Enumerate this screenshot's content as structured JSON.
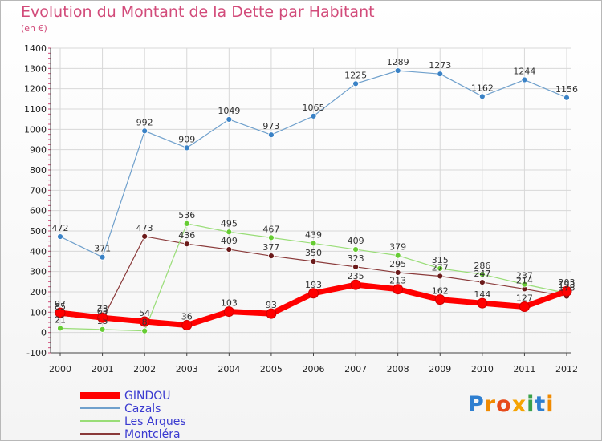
{
  "header": {
    "title": "Evolution du Montant de la Dette par Habitant",
    "subtitle": "(en €)"
  },
  "logo": {
    "letters": [
      "P",
      "r",
      "o",
      "x",
      "i",
      "t",
      "i"
    ]
  },
  "colors": {
    "title": "#d24b7a",
    "grid": "#d8d8d8",
    "axis": "#444444"
  },
  "chart_data": {
    "type": "line",
    "title": "Evolution du Montant de la Dette par Habitant",
    "subtitle": "(en €)",
    "xlabel": "",
    "ylabel": "",
    "x": [
      "2000",
      "2001",
      "2002",
      "2003",
      "2004",
      "2005",
      "2006",
      "2007",
      "2008",
      "2009",
      "2010",
      "2011",
      "2012"
    ],
    "ylim": [
      -100,
      1400
    ],
    "yticks": [
      -100,
      0,
      100,
      200,
      300,
      400,
      500,
      600,
      700,
      800,
      900,
      1000,
      1100,
      1200,
      1300,
      1400
    ],
    "grid": true,
    "legend": "bottom-left",
    "series": [
      {
        "name": "GINDOU",
        "color": "#ff0000",
        "width": 7,
        "markerColor": "#ff0000",
        "values": [
          97,
          73,
          54,
          36,
          103,
          93,
          193,
          235,
          213,
          162,
          144,
          127,
          203
        ]
      },
      {
        "name": "Cazals",
        "color": "#6fa0cc",
        "width": 1.2,
        "markerColor": "#3a82c6",
        "values": [
          472,
          371,
          992,
          909,
          1049,
          973,
          1065,
          1225,
          1289,
          1273,
          1162,
          1244,
          1156
        ]
      },
      {
        "name": "Les Arques",
        "color": "#99dd77",
        "width": 1.2,
        "markerColor": "#66cc33",
        "values": [
          21,
          15,
          8,
          536,
          495,
          467,
          439,
          409,
          379,
          315,
          286,
          237,
          193
        ]
      },
      {
        "name": "Montcléra",
        "color": "#8a3a3a",
        "width": 1.2,
        "markerColor": "#6b1a1a",
        "values": [
          85,
          63,
          473,
          436,
          409,
          377,
          350,
          323,
          295,
          277,
          247,
          214,
          178
        ]
      }
    ]
  }
}
